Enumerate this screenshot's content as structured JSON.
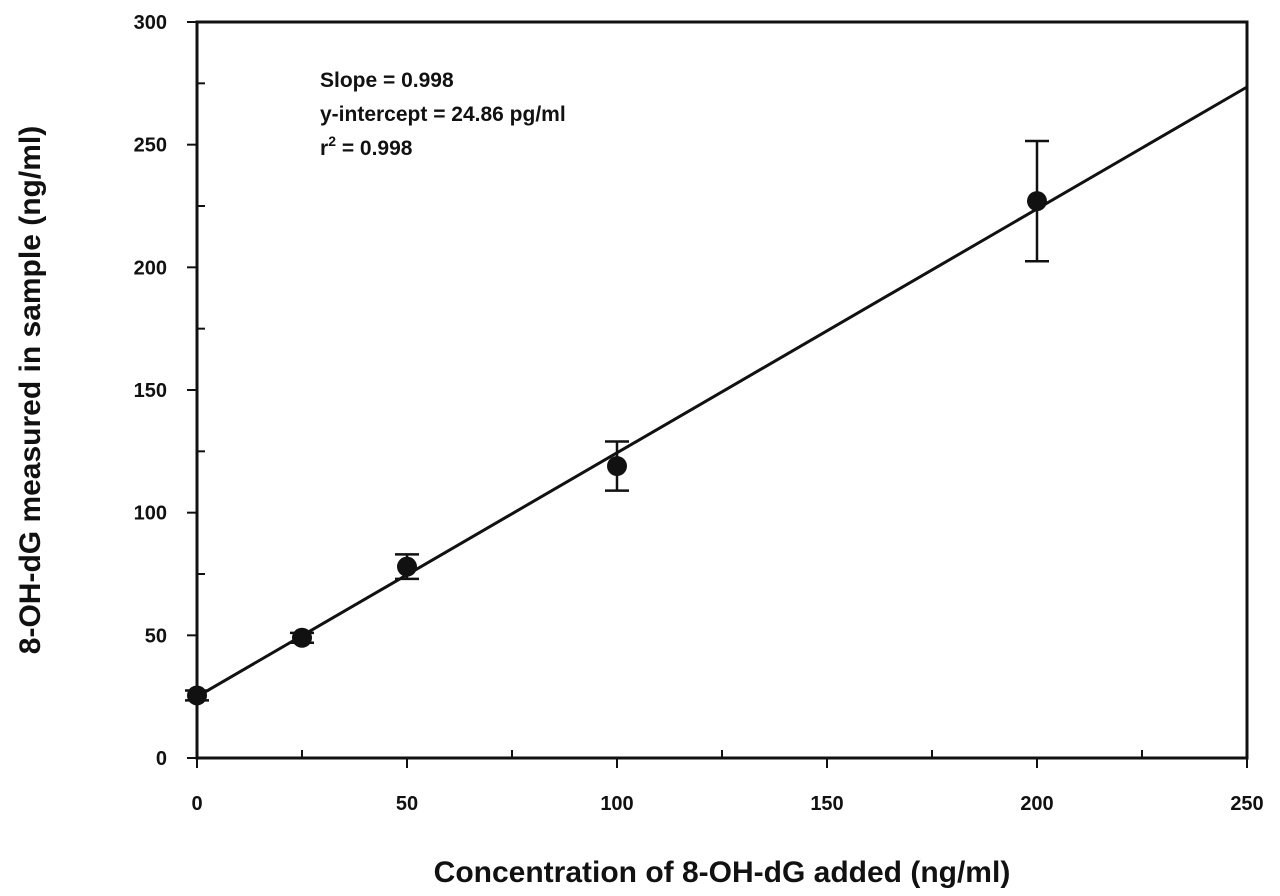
{
  "chart_data": {
    "type": "scatter",
    "xlabel": "Concentration of 8-OH-dG added (ng/ml)",
    "ylabel": "8-OH-dG measured in sample (ng/ml)",
    "xlim": [
      0,
      250
    ],
    "ylim": [
      0,
      300
    ],
    "xticks": [
      0,
      50,
      100,
      150,
      200,
      250
    ],
    "yticks": [
      0,
      50,
      100,
      150,
      200,
      250,
      300
    ],
    "xtick_labels": [
      "0",
      "50",
      "100",
      "150",
      "200",
      "250"
    ],
    "ytick_labels": [
      "0",
      "50",
      "100",
      "150",
      "200",
      "250",
      "300"
    ],
    "x_minor_step": 25,
    "y_minor_step": 25,
    "grid": false,
    "points": [
      {
        "x": 0,
        "y": 25.5,
        "err": 2
      },
      {
        "x": 25,
        "y": 49,
        "err": 2
      },
      {
        "x": 50,
        "y": 78,
        "err": 5
      },
      {
        "x": 100,
        "y": 119,
        "err": 10
      },
      {
        "x": 200,
        "y": 227,
        "err": 24.5
      }
    ],
    "fit_line": {
      "x0": 0,
      "y0": 25,
      "x1": 250,
      "y1": 273.5
    },
    "annotations": {
      "slope": "Slope = 0.998",
      "intercept": "y-intercept = 24.86 pg/ml",
      "r2_prefix": "r",
      "r2_sup": "2",
      "r2_suffix": " = 0.998"
    },
    "colors": {
      "ink": "#111111",
      "background": "#ffffff"
    }
  }
}
